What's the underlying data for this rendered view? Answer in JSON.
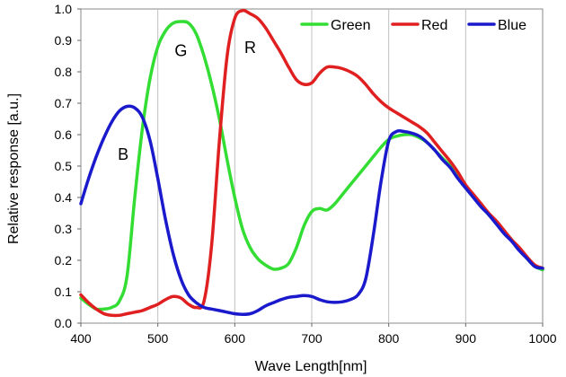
{
  "chart_data": {
    "type": "line",
    "xlabel": "Wave Length[nm]",
    "ylabel": "Relative response [a.u.]",
    "xlim": [
      400,
      1000
    ],
    "ylim": [
      0,
      1.0
    ],
    "grid": "vertical",
    "legend_position": "top-right",
    "x_ticks": [
      "400",
      "500",
      "600",
      "700",
      "800",
      "900",
      "1000"
    ],
    "y_ticks": [
      "0.0",
      "0.1",
      "0.2",
      "0.3",
      "0.4",
      "0.5",
      "0.6",
      "0.7",
      "0.8",
      "0.9",
      "1.0"
    ],
    "series": [
      {
        "name": "Green",
        "color": "#33dd33",
        "points": [
          [
            400,
            0.08
          ],
          [
            410,
            0.06
          ],
          [
            420,
            0.045
          ],
          [
            430,
            0.045
          ],
          [
            440,
            0.05
          ],
          [
            450,
            0.07
          ],
          [
            460,
            0.15
          ],
          [
            470,
            0.4
          ],
          [
            480,
            0.62
          ],
          [
            490,
            0.78
          ],
          [
            500,
            0.88
          ],
          [
            510,
            0.93
          ],
          [
            520,
            0.955
          ],
          [
            530,
            0.96
          ],
          [
            540,
            0.955
          ],
          [
            550,
            0.92
          ],
          [
            560,
            0.85
          ],
          [
            570,
            0.76
          ],
          [
            580,
            0.65
          ],
          [
            590,
            0.52
          ],
          [
            600,
            0.4
          ],
          [
            610,
            0.3
          ],
          [
            620,
            0.24
          ],
          [
            630,
            0.205
          ],
          [
            640,
            0.185
          ],
          [
            650,
            0.172
          ],
          [
            660,
            0.175
          ],
          [
            670,
            0.19
          ],
          [
            680,
            0.24
          ],
          [
            690,
            0.31
          ],
          [
            700,
            0.355
          ],
          [
            710,
            0.365
          ],
          [
            720,
            0.36
          ],
          [
            730,
            0.38
          ],
          [
            740,
            0.41
          ],
          [
            750,
            0.44
          ],
          [
            760,
            0.47
          ],
          [
            770,
            0.5
          ],
          [
            780,
            0.53
          ],
          [
            790,
            0.56
          ],
          [
            800,
            0.585
          ],
          [
            810,
            0.595
          ],
          [
            820,
            0.6
          ],
          [
            830,
            0.6
          ],
          [
            840,
            0.59
          ],
          [
            850,
            0.575
          ],
          [
            860,
            0.55
          ],
          [
            870,
            0.525
          ],
          [
            880,
            0.5
          ],
          [
            890,
            0.465
          ],
          [
            900,
            0.435
          ],
          [
            910,
            0.405
          ],
          [
            920,
            0.375
          ],
          [
            930,
            0.345
          ],
          [
            940,
            0.32
          ],
          [
            950,
            0.29
          ],
          [
            960,
            0.265
          ],
          [
            970,
            0.235
          ],
          [
            980,
            0.205
          ],
          [
            990,
            0.18
          ],
          [
            1000,
            0.17
          ]
        ]
      },
      {
        "name": "Red",
        "color": "#e02020",
        "points": [
          [
            400,
            0.09
          ],
          [
            410,
            0.065
          ],
          [
            420,
            0.045
          ],
          [
            430,
            0.03
          ],
          [
            440,
            0.025
          ],
          [
            450,
            0.025
          ],
          [
            460,
            0.03
          ],
          [
            470,
            0.035
          ],
          [
            480,
            0.04
          ],
          [
            490,
            0.05
          ],
          [
            500,
            0.06
          ],
          [
            510,
            0.075
          ],
          [
            520,
            0.085
          ],
          [
            530,
            0.08
          ],
          [
            540,
            0.06
          ],
          [
            550,
            0.05
          ],
          [
            560,
            0.07
          ],
          [
            570,
            0.25
          ],
          [
            580,
            0.58
          ],
          [
            590,
            0.85
          ],
          [
            600,
            0.97
          ],
          [
            610,
            0.995
          ],
          [
            620,
            0.985
          ],
          [
            630,
            0.97
          ],
          [
            640,
            0.94
          ],
          [
            650,
            0.9
          ],
          [
            660,
            0.86
          ],
          [
            670,
            0.815
          ],
          [
            680,
            0.775
          ],
          [
            690,
            0.76
          ],
          [
            700,
            0.765
          ],
          [
            710,
            0.795
          ],
          [
            720,
            0.815
          ],
          [
            730,
            0.815
          ],
          [
            740,
            0.81
          ],
          [
            750,
            0.8
          ],
          [
            760,
            0.785
          ],
          [
            770,
            0.76
          ],
          [
            780,
            0.73
          ],
          [
            790,
            0.705
          ],
          [
            800,
            0.685
          ],
          [
            810,
            0.67
          ],
          [
            820,
            0.655
          ],
          [
            830,
            0.64
          ],
          [
            840,
            0.625
          ],
          [
            850,
            0.605
          ],
          [
            860,
            0.575
          ],
          [
            870,
            0.545
          ],
          [
            880,
            0.515
          ],
          [
            890,
            0.48
          ],
          [
            900,
            0.44
          ],
          [
            910,
            0.41
          ],
          [
            920,
            0.38
          ],
          [
            930,
            0.35
          ],
          [
            940,
            0.325
          ],
          [
            950,
            0.295
          ],
          [
            960,
            0.265
          ],
          [
            970,
            0.24
          ],
          [
            980,
            0.21
          ],
          [
            990,
            0.185
          ],
          [
            1000,
            0.175
          ]
        ]
      },
      {
        "name": "Blue",
        "color": "#1a1acc",
        "points": [
          [
            400,
            0.38
          ],
          [
            410,
            0.46
          ],
          [
            420,
            0.53
          ],
          [
            430,
            0.59
          ],
          [
            440,
            0.64
          ],
          [
            450,
            0.675
          ],
          [
            460,
            0.69
          ],
          [
            470,
            0.685
          ],
          [
            480,
            0.655
          ],
          [
            490,
            0.58
          ],
          [
            500,
            0.46
          ],
          [
            510,
            0.33
          ],
          [
            520,
            0.22
          ],
          [
            530,
            0.14
          ],
          [
            540,
            0.09
          ],
          [
            550,
            0.065
          ],
          [
            560,
            0.05
          ],
          [
            570,
            0.045
          ],
          [
            580,
            0.04
          ],
          [
            590,
            0.035
          ],
          [
            600,
            0.03
          ],
          [
            610,
            0.028
          ],
          [
            620,
            0.03
          ],
          [
            630,
            0.04
          ],
          [
            640,
            0.055
          ],
          [
            650,
            0.065
          ],
          [
            660,
            0.075
          ],
          [
            670,
            0.082
          ],
          [
            680,
            0.085
          ],
          [
            690,
            0.088
          ],
          [
            700,
            0.085
          ],
          [
            710,
            0.075
          ],
          [
            720,
            0.068
          ],
          [
            730,
            0.066
          ],
          [
            740,
            0.068
          ],
          [
            750,
            0.075
          ],
          [
            760,
            0.09
          ],
          [
            770,
            0.14
          ],
          [
            780,
            0.28
          ],
          [
            790,
            0.45
          ],
          [
            800,
            0.58
          ],
          [
            810,
            0.61
          ],
          [
            820,
            0.61
          ],
          [
            830,
            0.605
          ],
          [
            840,
            0.595
          ],
          [
            850,
            0.575
          ],
          [
            860,
            0.55
          ],
          [
            870,
            0.52
          ],
          [
            880,
            0.495
          ],
          [
            890,
            0.46
          ],
          [
            900,
            0.43
          ],
          [
            910,
            0.4
          ],
          [
            920,
            0.37
          ],
          [
            930,
            0.345
          ],
          [
            940,
            0.315
          ],
          [
            950,
            0.285
          ],
          [
            960,
            0.26
          ],
          [
            970,
            0.23
          ],
          [
            980,
            0.205
          ],
          [
            990,
            0.18
          ],
          [
            1000,
            0.175
          ]
        ]
      }
    ],
    "annotations": [
      {
        "text": "B",
        "x": 455,
        "y": 0.52
      },
      {
        "text": "G",
        "x": 530,
        "y": 0.85
      },
      {
        "text": "R",
        "x": 620,
        "y": 0.86
      }
    ]
  }
}
